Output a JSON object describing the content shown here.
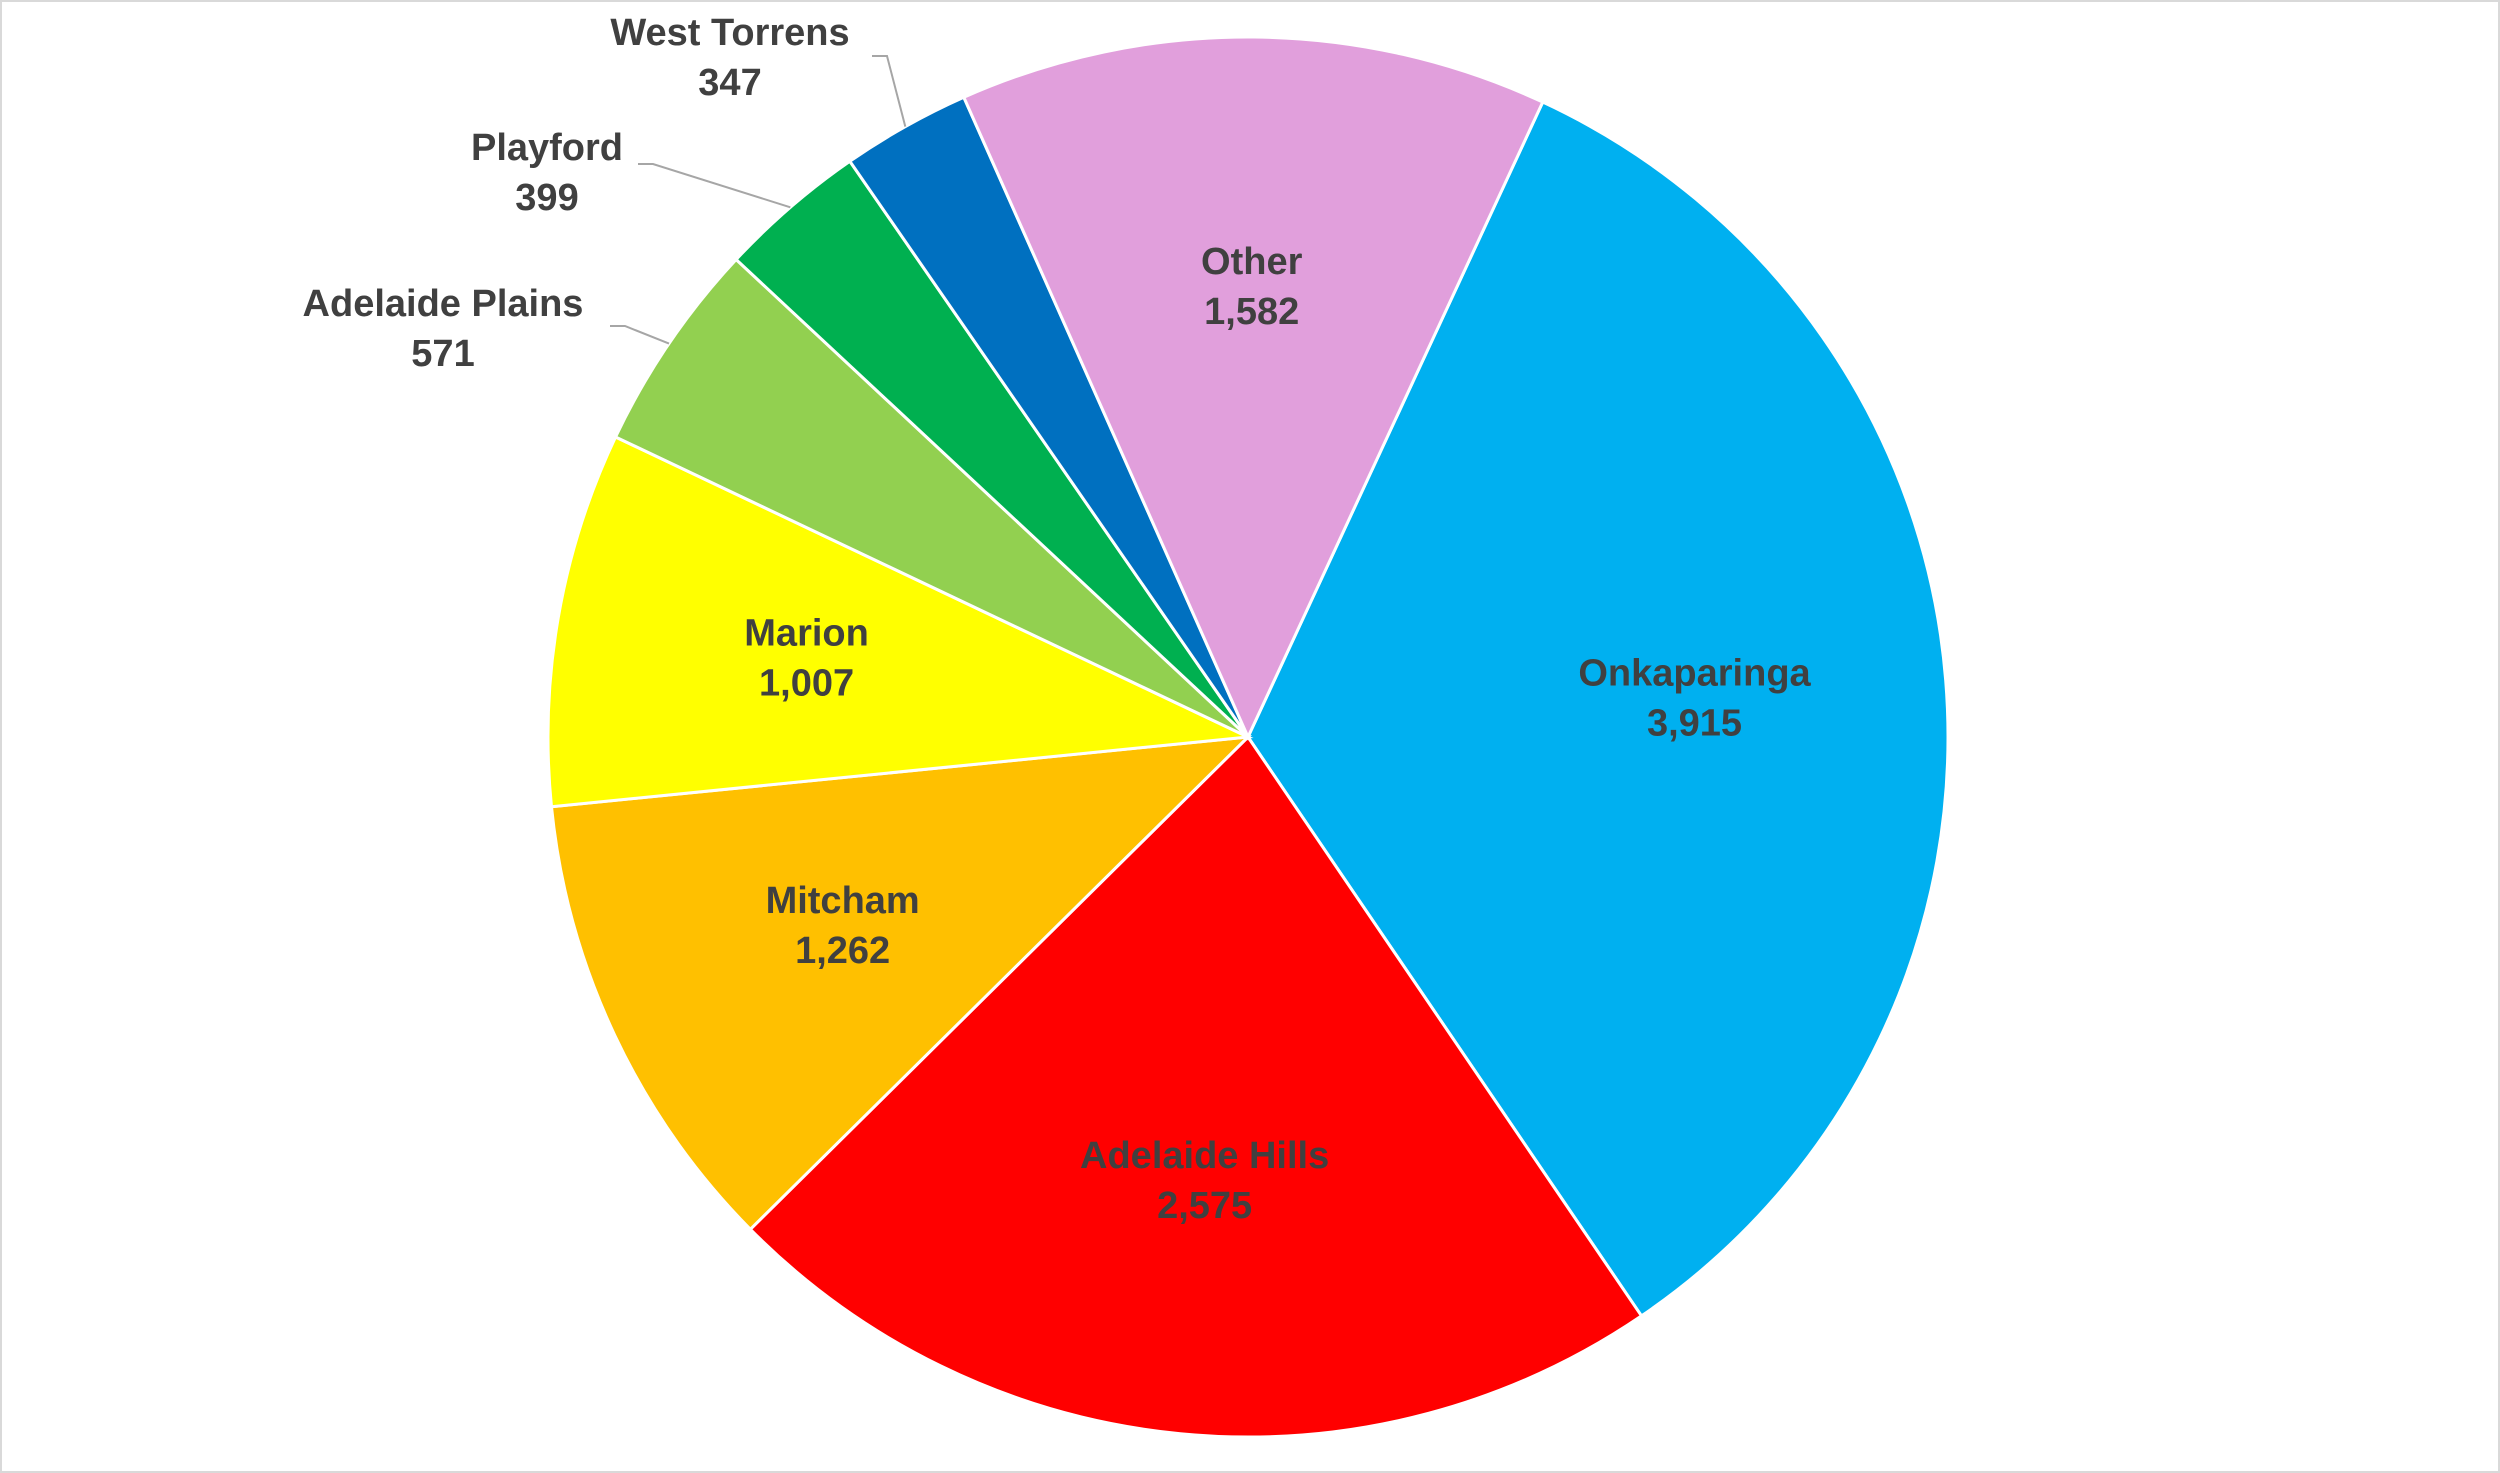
{
  "chart_data": {
    "type": "pie",
    "categories": [
      "Onkaparinga",
      "Adelaide Hills",
      "Mitcham",
      "Marion",
      "Adelaide Plains",
      "Playford",
      "West Torrens",
      "Other"
    ],
    "values": [
      3915,
      2575,
      1262,
      1007,
      571,
      399,
      347,
      1582
    ],
    "value_labels": [
      "3,915",
      "2,575",
      "1,262",
      "1,007",
      "571",
      "399",
      "347",
      "1,582"
    ],
    "colors": [
      "#00b0f0",
      "#ff0000",
      "#ffc000",
      "#ffff00",
      "#92d050",
      "#00b050",
      "#0070c0",
      "#e19fdc"
    ]
  }
}
